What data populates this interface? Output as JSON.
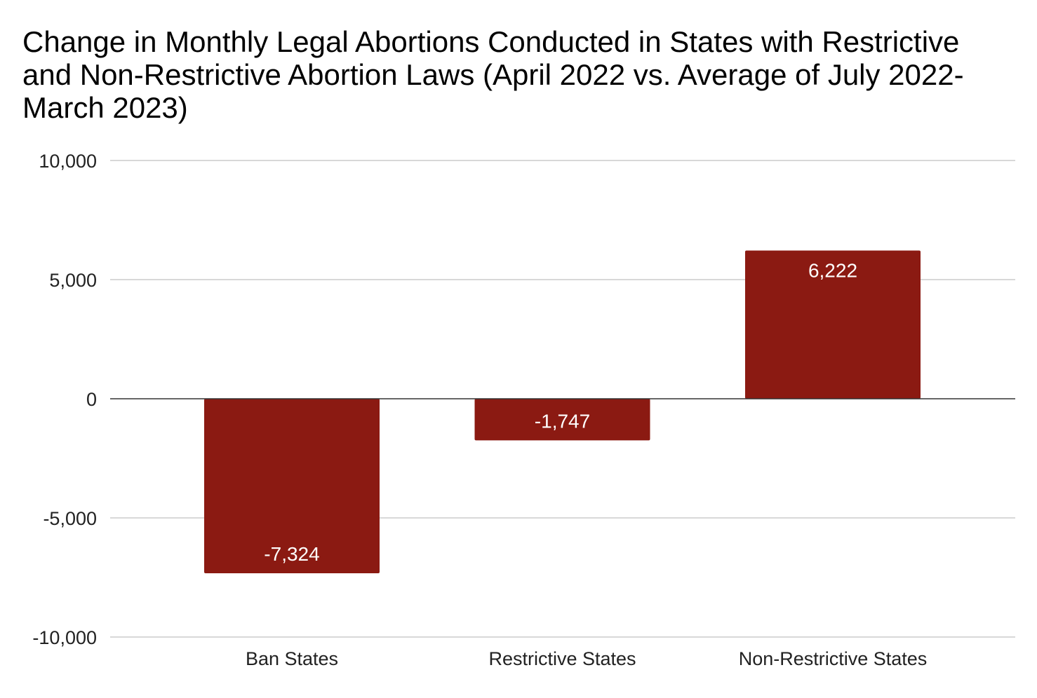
{
  "chart_data": {
    "type": "bar",
    "title": "Change in Monthly Legal Abortions Conducted in States with Restrictive and Non-Restrictive Abortion Laws (April 2022 vs. Average of July 2022-March 2023)",
    "xlabel": "",
    "ylabel": "",
    "categories": [
      "Ban States",
      "Restrictive States",
      "Non-Restrictive States"
    ],
    "values": [
      -7324,
      -1747,
      6222
    ],
    "data_labels": [
      "-7,324",
      "-1,747",
      "6,222"
    ],
    "ylim": [
      -10000,
      10000
    ],
    "y_ticks": [
      10000,
      5000,
      0,
      -5000,
      -10000
    ],
    "y_tick_labels": [
      "10,000",
      "5,000",
      "0",
      "-5,000",
      "-10,000"
    ],
    "grid": true,
    "legend": "none",
    "colors": {
      "bar": "#8b1a12",
      "grid": "#cccccc",
      "zero_line": "#333333"
    }
  }
}
